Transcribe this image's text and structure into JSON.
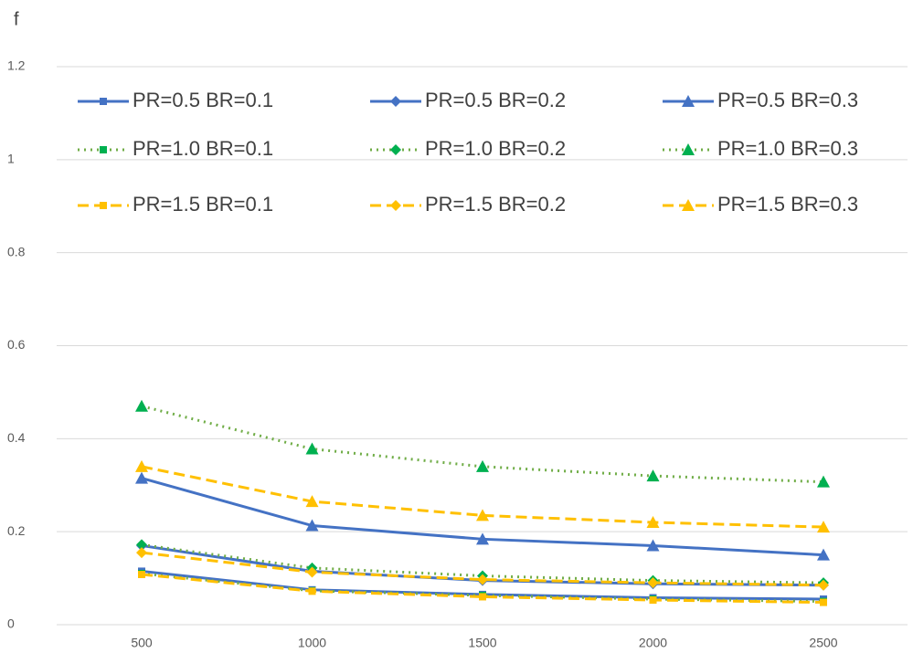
{
  "chart_data": {
    "type": "line",
    "y_label": "f",
    "categories": [
      "500",
      "1000",
      "1500",
      "2000",
      "2500"
    ],
    "ylim": [
      0,
      1.2
    ],
    "yticks": [
      0,
      0.2,
      0.4,
      0.6,
      0.8,
      1,
      1.2
    ],
    "grid": true,
    "legend": "top",
    "series": [
      {
        "name": "PR=0.5 BR=0.1",
        "color": "#4472c4",
        "dash": "solid",
        "marker": "square",
        "values": [
          0.115,
          0.075,
          0.065,
          0.058,
          0.055
        ]
      },
      {
        "name": "PR=0.5 BR=0.2",
        "color": "#4472c4",
        "dash": "solid",
        "marker": "diamond",
        "values": [
          0.17,
          0.115,
          0.095,
          0.088,
          0.085
        ]
      },
      {
        "name": "PR=0.5 BR=0.3",
        "color": "#4472c4",
        "dash": "solid",
        "marker": "triangle",
        "values": [
          0.315,
          0.213,
          0.184,
          0.17,
          0.15
        ]
      },
      {
        "name": "PR=1.0 BR=0.1",
        "color": "#70ad47",
        "dash": "dotted",
        "marker": "square",
        "values": [
          0.11,
          0.073,
          0.063,
          0.055,
          0.05
        ]
      },
      {
        "name": "PR=1.0 BR=0.2",
        "color": "#70ad47",
        "dash": "dotted",
        "marker": "diamond",
        "values": [
          0.172,
          0.122,
          0.105,
          0.095,
          0.09
        ]
      },
      {
        "name": "PR=1.0 BR=0.3",
        "color": "#70ad47",
        "dash": "dotted",
        "marker": "triangle",
        "values": [
          0.47,
          0.378,
          0.34,
          0.32,
          0.307
        ]
      },
      {
        "name": "PR=1.5 BR=0.1",
        "color": "#ffc000",
        "dash": "dashed",
        "marker": "square",
        "values": [
          0.108,
          0.072,
          0.06,
          0.053,
          0.048
        ]
      },
      {
        "name": "PR=1.5 BR=0.2",
        "color": "#ffc000",
        "dash": "dashed",
        "marker": "diamond",
        "values": [
          0.155,
          0.113,
          0.097,
          0.09,
          0.085
        ]
      },
      {
        "name": "PR=1.5 BR=0.3",
        "color": "#ffc000",
        "dash": "dashed",
        "marker": "triangle",
        "values": [
          0.34,
          0.265,
          0.235,
          0.22,
          0.21
        ]
      }
    ]
  }
}
